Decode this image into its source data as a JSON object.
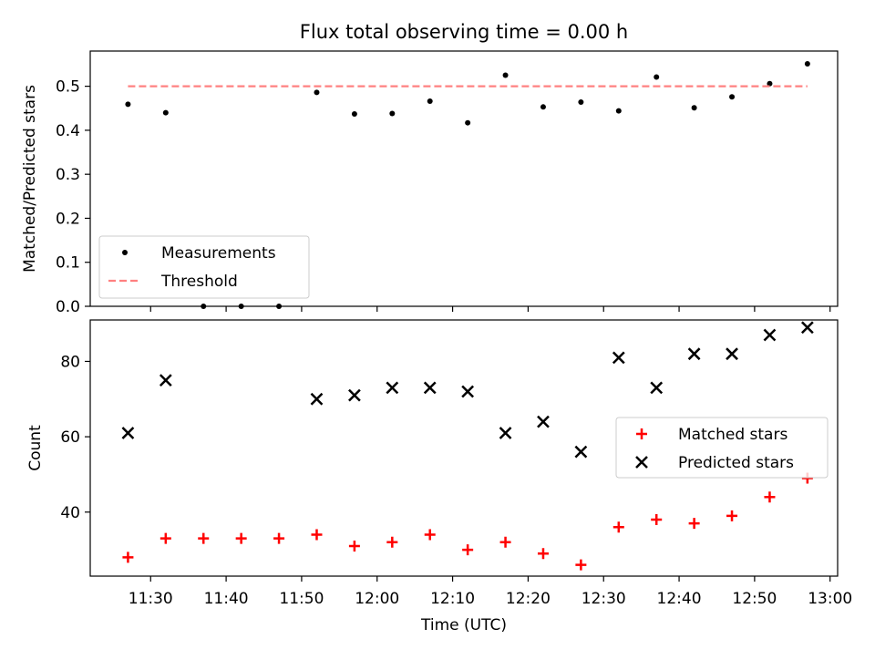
{
  "chart_data": [
    {
      "type": "scatter",
      "title": "Flux total observing time = 0.00 h",
      "xlabel": "",
      "ylabel": "Matched/Predicted stars",
      "ylim": [
        0,
        0.58
      ],
      "yticks": [
        "0.0",
        "0.1",
        "0.2",
        "0.3",
        "0.4",
        "0.5"
      ],
      "xticks": [
        "11:30",
        "11:40",
        "11:50",
        "12:00",
        "12:10",
        "12:20",
        "12:30",
        "12:40",
        "12:50",
        "13:00"
      ],
      "xlim": [
        "11:22",
        "13:01"
      ],
      "legend_position": "lower left",
      "series": [
        {
          "name": "Measurements",
          "style": "dot",
          "color": "#000000",
          "x": [
            "11:27",
            "11:32",
            "11:37",
            "11:42",
            "11:47",
            "11:52",
            "11:57",
            "12:02",
            "12:07",
            "12:12",
            "12:17",
            "12:22",
            "12:27",
            "12:32",
            "12:37",
            "12:42",
            "12:47",
            "12:52",
            "12:57"
          ],
          "y": [
            0.459,
            0.44,
            0.0,
            0.0,
            0.0,
            0.486,
            0.437,
            0.438,
            0.466,
            0.417,
            0.525,
            0.453,
            0.464,
            0.444,
            0.521,
            0.451,
            0.476,
            0.506,
            0.551
          ]
        },
        {
          "name": "Threshold",
          "style": "dashed-line",
          "color": "#ff8080",
          "x": [
            "11:27",
            "12:57"
          ],
          "y": [
            0.5,
            0.5
          ]
        }
      ]
    },
    {
      "type": "scatter",
      "title": "",
      "xlabel": "Time (UTC)",
      "ylabel": "Count",
      "ylim": [
        23,
        91
      ],
      "yticks": [
        "40",
        "60",
        "80"
      ],
      "xticks": [
        "11:30",
        "11:40",
        "11:50",
        "12:00",
        "12:10",
        "12:20",
        "12:30",
        "12:40",
        "12:50",
        "13:00"
      ],
      "xlim": [
        "11:22",
        "13:01"
      ],
      "legend_position": "center right",
      "series": [
        {
          "name": "Matched stars",
          "style": "plus",
          "color": "#ff0000",
          "x": [
            "11:27",
            "11:32",
            "11:37",
            "11:42",
            "11:47",
            "11:52",
            "11:57",
            "12:02",
            "12:07",
            "12:12",
            "12:17",
            "12:22",
            "12:27",
            "12:32",
            "12:37",
            "12:42",
            "12:47",
            "12:52",
            "12:57"
          ],
          "y": [
            28,
            33,
            33,
            33,
            33,
            34,
            31,
            32,
            34,
            30,
            32,
            29,
            26,
            36,
            38,
            37,
            39,
            44,
            49
          ]
        },
        {
          "name": "Predicted stars",
          "style": "x",
          "color": "#000000",
          "x": [
            "11:27",
            "11:32",
            "11:52",
            "11:57",
            "12:02",
            "12:07",
            "12:12",
            "12:17",
            "12:22",
            "12:27",
            "12:32",
            "12:37",
            "12:42",
            "12:47",
            "12:52",
            "12:57"
          ],
          "y": [
            61,
            75,
            70,
            71,
            73,
            73,
            72,
            61,
            64,
            56,
            81,
            73,
            82,
            82,
            87,
            89
          ]
        }
      ]
    }
  ]
}
